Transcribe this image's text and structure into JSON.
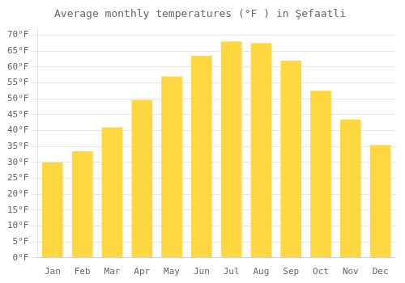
{
  "chart_data": {
    "type": "bar",
    "title": "Average monthly temperatures (°F ) in Şefaatli",
    "categories": [
      "Jan",
      "Feb",
      "Mar",
      "Apr",
      "May",
      "Jun",
      "Jul",
      "Aug",
      "Sep",
      "Oct",
      "Nov",
      "Dec"
    ],
    "values": [
      30,
      33.5,
      41,
      49.5,
      57,
      63.5,
      68,
      67.5,
      62,
      52.5,
      43.5,
      35.5
    ],
    "color": "#FFD740",
    "ylim": [
      0,
      72
    ],
    "yticks": [
      {
        "value": 0,
        "label": "0°F"
      },
      {
        "value": 5,
        "label": "5°F"
      },
      {
        "value": 10,
        "label": "10°F"
      },
      {
        "value": 15,
        "label": "15°F"
      },
      {
        "value": 20,
        "label": "20°F"
      },
      {
        "value": 25,
        "label": "25°F"
      },
      {
        "value": 30,
        "label": "30°F"
      },
      {
        "value": 35,
        "label": "35°F"
      },
      {
        "value": 40,
        "label": "40°F"
      },
      {
        "value": 45,
        "label": "45°F"
      },
      {
        "value": 50,
        "label": "50°F"
      },
      {
        "value": 55,
        "label": "55°F"
      },
      {
        "value": 60,
        "label": "60°F"
      },
      {
        "value": 65,
        "label": "65°F"
      },
      {
        "value": 70,
        "label": "70°F"
      }
    ],
    "grid": true
  }
}
